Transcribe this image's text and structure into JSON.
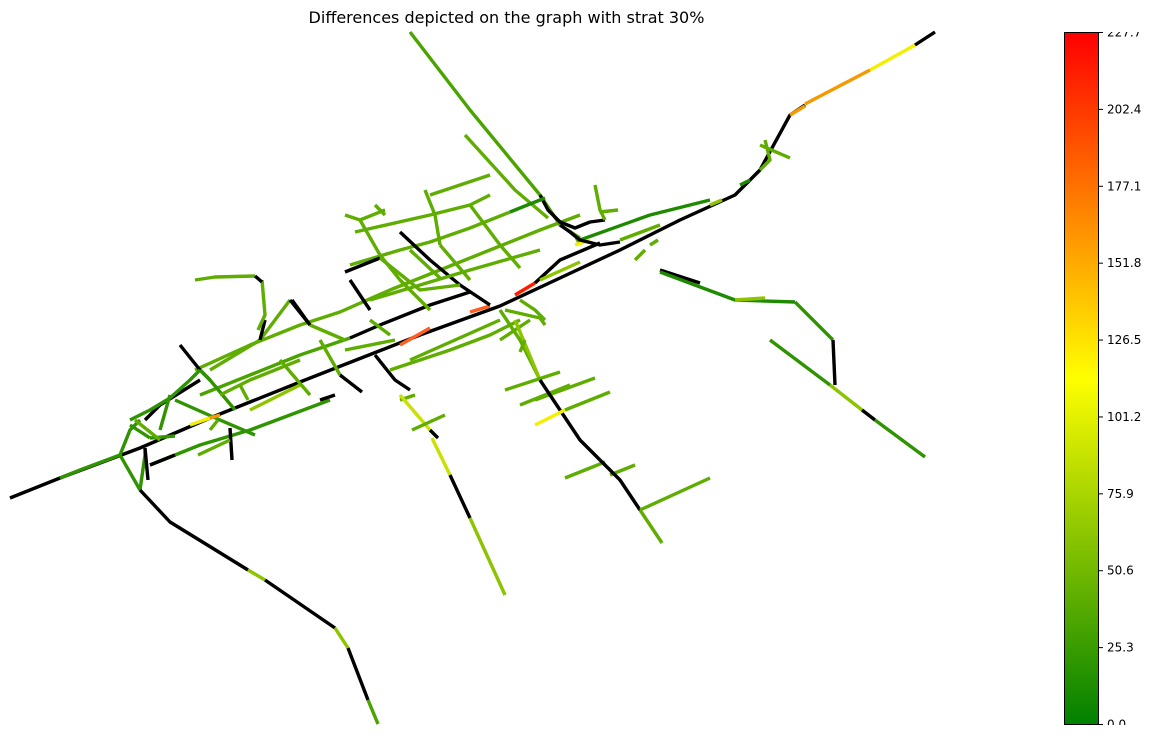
{
  "chart_data": {
    "type": "network-map",
    "title": "Differences depicted on the graph with strat 30%",
    "colorbar": {
      "min": 0.0,
      "max": 227.7,
      "ticks": [
        "227.7",
        "202.4",
        "177.1",
        "151.8",
        "126.5",
        "101.2",
        "75.9",
        "50.6",
        "25.3",
        "0.0"
      ],
      "tick_values": [
        227.7,
        202.4,
        177.1,
        151.8,
        126.5,
        101.2,
        75.9,
        50.6,
        25.3,
        0.0
      ],
      "colors": [
        "#008000",
        "#ffff00",
        "#ff0000"
      ],
      "orientation": "vertical",
      "placement": "right"
    },
    "no_data_color": "#000000",
    "legend": "none",
    "grid": false,
    "axes_visible": false
  }
}
